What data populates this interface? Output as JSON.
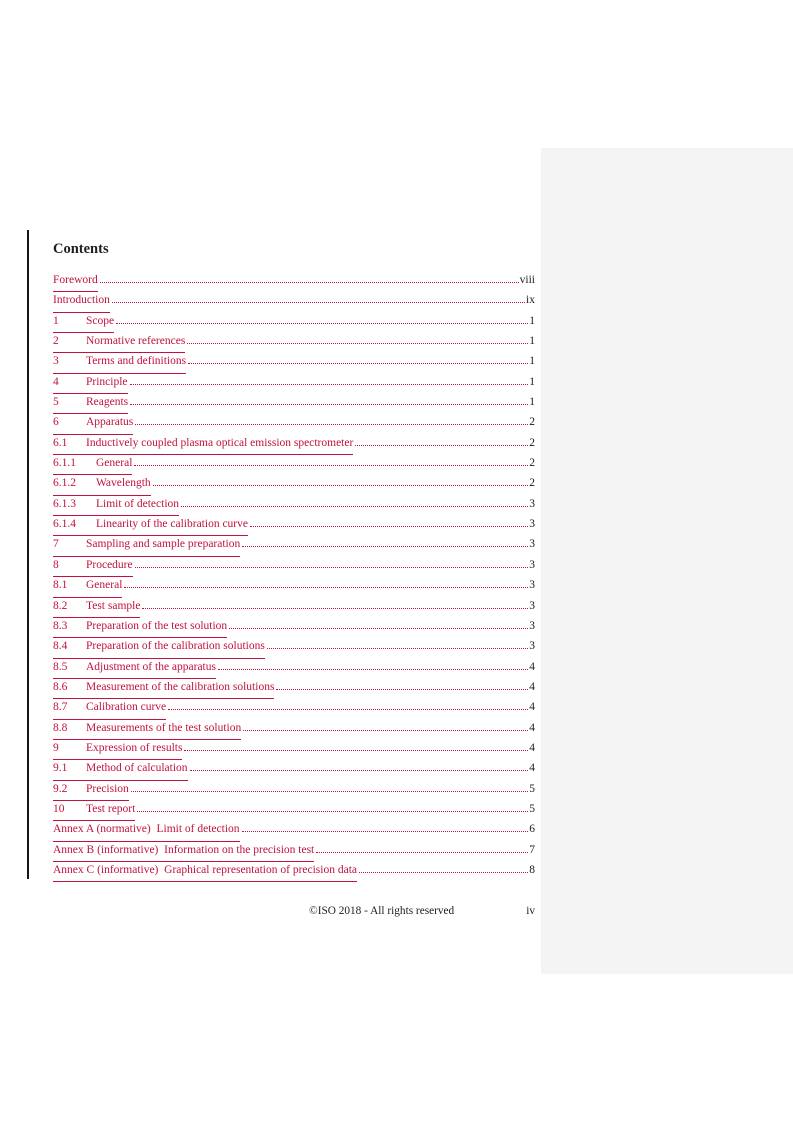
{
  "page": {
    "heading": "Contents",
    "footer": {
      "copyright": "©ISO 2018 - All rights reserved",
      "page_number": "iv"
    }
  },
  "colors": {
    "link_red": "#c1123c",
    "text_black": "#1c1c1c",
    "panel_gray": "#f4f4f4"
  },
  "toc": {
    "entries": [
      {
        "num": "",
        "title": "Foreword",
        "page": "viii",
        "indent": 0
      },
      {
        "num": "",
        "title": "Introduction",
        "page": "ix",
        "indent": 0
      },
      {
        "num": "1",
        "title": "Scope",
        "page": "1",
        "indent": 1
      },
      {
        "num": "2",
        "title": "Normative references",
        "page": "1",
        "indent": 1
      },
      {
        "num": "3",
        "title": "Terms and definitions",
        "page": "1",
        "indent": 1
      },
      {
        "num": "4",
        "title": "Principle",
        "page": "1",
        "indent": 1
      },
      {
        "num": "5",
        "title": "Reagents",
        "page": "1",
        "indent": 1
      },
      {
        "num": "6",
        "title": "Apparatus",
        "page": "2",
        "indent": 1
      },
      {
        "num": "6.1",
        "title": "Inductively coupled plasma optical emission spectrometer",
        "page": "2",
        "indent": 1
      },
      {
        "num": "6.1.1",
        "title": "General",
        "page": "2",
        "indent": 2
      },
      {
        "num": "6.1.2",
        "title": "Wavelength",
        "page": "2",
        "indent": 2
      },
      {
        "num": "6.1.3",
        "title": "Limit of detection",
        "page": "3",
        "indent": 2
      },
      {
        "num": "6.1.4",
        "title": "Linearity of the calibration curve",
        "page": "3",
        "indent": 2
      },
      {
        "num": "7",
        "title": "Sampling and sample preparation",
        "page": "3",
        "indent": 1
      },
      {
        "num": "8",
        "title": "Procedure",
        "page": "3",
        "indent": 1
      },
      {
        "num": "8.1",
        "title": "General",
        "page": "3",
        "indent": 1
      },
      {
        "num": "8.2",
        "title": "Test sample",
        "page": "3",
        "indent": 1
      },
      {
        "num": "8.3",
        "title": "Preparation of the test solution",
        "page": "3",
        "indent": 1
      },
      {
        "num": "8.4",
        "title": "Preparation of the calibration solutions",
        "page": "3",
        "indent": 1
      },
      {
        "num": "8.5",
        "title": "Adjustment of the apparatus",
        "page": "4",
        "indent": 1
      },
      {
        "num": "8.6",
        "title": "Measurement of the calibration solutions",
        "page": "4",
        "indent": 1
      },
      {
        "num": "8.7",
        "title": "Calibration curve",
        "page": "4",
        "indent": 1
      },
      {
        "num": "8.8",
        "title": "Measurements of the test solution",
        "page": "4",
        "indent": 1
      },
      {
        "num": "9",
        "title": "Expression of results",
        "page": "4",
        "indent": 1
      },
      {
        "num": "9.1",
        "title": "Method of calculation",
        "page": "4",
        "indent": 1
      },
      {
        "num": "9.2",
        "title": "Precision",
        "page": "5",
        "indent": 1
      },
      {
        "num": "10",
        "title": "Test report",
        "page": "5",
        "indent": 1
      },
      {
        "num": "",
        "title": "Annex A (normative)  Limit of detection",
        "page": "6",
        "indent": 0
      },
      {
        "num": "",
        "title": "Annex B (informative)  Information on the precision test",
        "page": "7",
        "indent": 0
      },
      {
        "num": "",
        "title": "Annex C (informative)  Graphical representation of precision data",
        "page": "8",
        "indent": 0
      }
    ]
  }
}
